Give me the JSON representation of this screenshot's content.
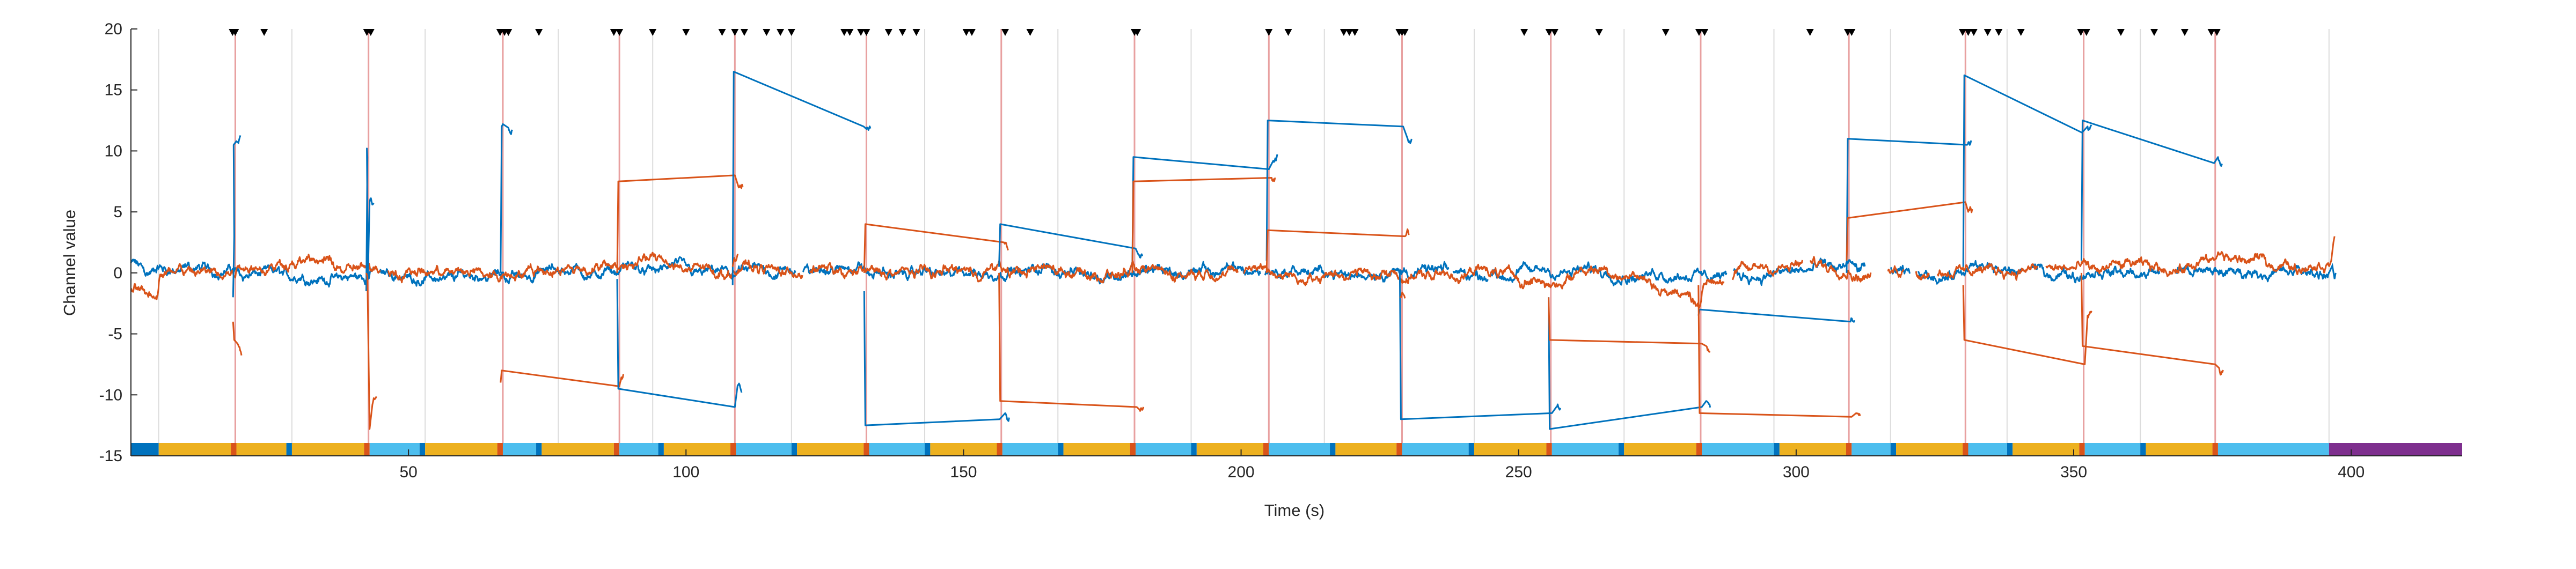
{
  "chart_data": {
    "type": "line",
    "title": "",
    "xlabel": "Time (s)",
    "ylabel": "Channel value",
    "xlim": [
      0,
      420
    ],
    "ylim": [
      -15,
      20
    ],
    "x_ticks": [
      50,
      100,
      150,
      200,
      250,
      300,
      350,
      400
    ],
    "y_ticks": [
      -15,
      -10,
      -5,
      0,
      5,
      10,
      15,
      20
    ],
    "grid": "vertical lines at event times",
    "colors": {
      "series_blue": "#0072BD",
      "series_orange": "#D95319",
      "event_line": "#E8A0A0",
      "grid_line": "#DCDCDC",
      "bar_yellow": "#EDB120",
      "bar_cyan": "#4DBEEE",
      "bar_darkblue": "#0072BD",
      "bar_purple": "#7E2F8E",
      "bar_orange": "#D95319",
      "marker": "#000000"
    },
    "event_lines": [
      18.8,
      42.8,
      67.0,
      88.0,
      108.8,
      132.5,
      156.8,
      180.8,
      205.0,
      229.0,
      255.8,
      282.8,
      309.5,
      330.5,
      351.8,
      375.5
    ],
    "grid_lines": [
      5,
      29,
      53,
      77,
      94,
      119,
      143,
      167,
      191,
      215,
      242,
      269,
      296,
      317,
      338,
      362,
      396
    ],
    "markers": [
      18.3,
      18.8,
      24,
      42.5,
      43.2,
      66.5,
      67.3,
      68.0,
      73.5,
      87.0,
      88.0,
      94,
      100,
      106.5,
      108.8,
      110.5,
      114.5,
      117,
      119,
      128.5,
      129.5,
      131.5,
      132.5,
      136.5,
      139,
      141.5,
      150.5,
      151.5,
      157.5,
      162,
      180.8,
      181.3,
      205.0,
      208.5,
      218.5,
      219.5,
      220.5,
      228.5,
      229.0,
      229.5,
      251,
      255.5,
      256.5,
      264.5,
      276.5,
      282.5,
      283.5,
      302.5,
      309.3,
      310.0,
      330.0,
      331.0,
      332.0,
      334.5,
      336.5,
      340.5,
      351.3,
      352.3,
      358.5,
      364.5,
      370,
      374.8,
      375.8
    ],
    "event_segments": [
      [
        -1.0,
        2,
        -2.0,
        3,
        18.5,
        10.5,
        19.0,
        10.8
      ],
      [
        0.3,
        1,
        -4.0,
        -5.5,
        19.2,
        -5.8
      ],
      [
        -0.5,
        0,
        -1.5,
        9.5,
        42.5,
        10.2,
        42.7,
        -0.3,
        43.0,
        5.8
      ],
      [
        0.0,
        0,
        0.0,
        -0.3,
        43.0,
        -12.8,
        43.5,
        -10.8
      ],
      [
        0.2,
        1,
        0.0,
        12.0,
        67.0,
        12.2,
        68.0,
        11.9
      ],
      [
        -1.0,
        2,
        -9.0,
        -8.0,
        88.0,
        -9.3
      ],
      [
        0.3,
        1,
        -0.5,
        -9.5,
        108.8,
        -11.0,
        109.3,
        -9.2
      ],
      [
        0.0,
        0,
        0.0,
        7.5,
        108.8,
        8.0,
        109.5,
        7.0
      ],
      [
        -0.5,
        0,
        -1.0,
        16.5,
        132.0,
        12.0,
        132.5,
        11.8
      ],
      [
        6.0,
        2,
        0.5,
        1.0
      ],
      [
        -0.5,
        0,
        -1.5,
        -12.5,
        156.5,
        -12.0,
        157.5,
        -11.5
      ],
      [
        -2.0,
        2,
        0.0,
        4.0,
        157.3,
        2.5
      ],
      [
        -1.0,
        2,
        0.5,
        4.0,
        181.0,
        2.0,
        181.5,
        1.5
      ],
      [
        0.0,
        0,
        0.0,
        -10.5,
        181.2,
        -11.0,
        181.7,
        -11.2
      ],
      [
        0.5,
        0,
        0.3,
        9.5,
        205.0,
        8.5,
        205.8,
        9.2
      ],
      [
        0.3,
        1,
        0.0,
        7.5,
        205.5,
        7.8
      ],
      [
        0.0,
        0,
        1.0,
        12.5,
        229.2,
        12.0,
        230.0,
        11.0
      ],
      [
        0.0,
        2,
        0.0,
        3.5,
        229.5,
        3.0
      ],
      [
        -1.0,
        2,
        0.0,
        -12.0,
        256.0,
        -11.5,
        256.8,
        -11.0
      ],
      [
        -1.0,
        1,
        -2.0,
        -2.0
      ],
      [
        -1.0,
        2,
        -2.0,
        -12.8,
        283.0,
        -11.0,
        283.8,
        -10.5
      ],
      [
        -0.5,
        0,
        -2.0,
        -5.5,
        283.0,
        -5.8,
        283.8,
        -6.0
      ],
      [
        -0.5,
        2,
        -3.5,
        -3.0,
        309.8,
        -4.0
      ],
      [
        0.0,
        0,
        -1.0,
        -11.5,
        310.0,
        -11.8,
        310.8,
        -11.5
      ],
      [
        0.0,
        1,
        0.0,
        11.0,
        330.8,
        10.5
      ],
      [
        0.0,
        0,
        1.0,
        4.5,
        330.5,
        5.8,
        331.0,
        5.0
      ],
      [
        0.0,
        0,
        0.5,
        16.2,
        351.5,
        11.5,
        352.5,
        12.0
      ],
      [
        0.3,
        1,
        -1.0,
        -5.5,
        352.0,
        -7.5,
        352.5,
        -3.5
      ],
      [
        0.0,
        0,
        1.0,
        12.5,
        375.3,
        9.0,
        376.0,
        9.5
      ],
      [
        0.0,
        0,
        0.0,
        -6.0,
        375.5,
        -7.5,
        376.2,
        -7.8
      ]
    ],
    "bar_segments": [
      [
        0,
        5,
        "bar_darkblue"
      ],
      [
        5,
        18,
        "bar_yellow"
      ],
      [
        18,
        19,
        "bar_orange"
      ],
      [
        19,
        28,
        "bar_yellow"
      ],
      [
        28,
        29,
        "bar_darkblue"
      ],
      [
        29,
        42,
        "bar_yellow"
      ],
      [
        42,
        43,
        "bar_orange"
      ],
      [
        43,
        52,
        "bar_cyan"
      ],
      [
        52,
        53,
        "bar_darkblue"
      ],
      [
        53,
        66,
        "bar_yellow"
      ],
      [
        66,
        67,
        "bar_orange"
      ],
      [
        67,
        73,
        "bar_cyan"
      ],
      [
        73,
        74,
        "bar_darkblue"
      ],
      [
        74,
        87,
        "bar_yellow"
      ],
      [
        87,
        88,
        "bar_orange"
      ],
      [
        88,
        95,
        "bar_cyan"
      ],
      [
        95,
        96,
        "bar_darkblue"
      ],
      [
        96,
        108,
        "bar_yellow"
      ],
      [
        108,
        109,
        "bar_orange"
      ],
      [
        109,
        119,
        "bar_cyan"
      ],
      [
        119,
        120,
        "bar_darkblue"
      ],
      [
        120,
        132,
        "bar_yellow"
      ],
      [
        132,
        133,
        "bar_orange"
      ],
      [
        133,
        143,
        "bar_cyan"
      ],
      [
        143,
        144,
        "bar_darkblue"
      ],
      [
        144,
        156,
        "bar_yellow"
      ],
      [
        156,
        157,
        "bar_orange"
      ],
      [
        157,
        167,
        "bar_cyan"
      ],
      [
        167,
        168,
        "bar_darkblue"
      ],
      [
        168,
        180,
        "bar_yellow"
      ],
      [
        180,
        181,
        "bar_orange"
      ],
      [
        181,
        191,
        "bar_cyan"
      ],
      [
        191,
        192,
        "bar_darkblue"
      ],
      [
        192,
        204,
        "bar_yellow"
      ],
      [
        204,
        205,
        "bar_orange"
      ],
      [
        205,
        216,
        "bar_cyan"
      ],
      [
        216,
        217,
        "bar_darkblue"
      ],
      [
        217,
        228,
        "bar_yellow"
      ],
      [
        228,
        229,
        "bar_orange"
      ],
      [
        229,
        241,
        "bar_cyan"
      ],
      [
        241,
        242,
        "bar_darkblue"
      ],
      [
        242,
        255,
        "bar_yellow"
      ],
      [
        255,
        256,
        "bar_orange"
      ],
      [
        256,
        268,
        "bar_cyan"
      ],
      [
        268,
        269,
        "bar_darkblue"
      ],
      [
        269,
        282,
        "bar_yellow"
      ],
      [
        282,
        283,
        "bar_orange"
      ],
      [
        283,
        296,
        "bar_cyan"
      ],
      [
        296,
        297,
        "bar_darkblue"
      ],
      [
        297,
        309,
        "bar_yellow"
      ],
      [
        309,
        310,
        "bar_orange"
      ],
      [
        310,
        317,
        "bar_cyan"
      ],
      [
        317,
        318,
        "bar_darkblue"
      ],
      [
        318,
        330,
        "bar_yellow"
      ],
      [
        330,
        331,
        "bar_orange"
      ],
      [
        331,
        338,
        "bar_cyan"
      ],
      [
        338,
        339,
        "bar_darkblue"
      ],
      [
        339,
        351,
        "bar_yellow"
      ],
      [
        351,
        352,
        "bar_orange"
      ],
      [
        352,
        362,
        "bar_cyan"
      ],
      [
        362,
        363,
        "bar_darkblue"
      ],
      [
        363,
        375,
        "bar_yellow"
      ],
      [
        375,
        376,
        "bar_orange"
      ],
      [
        376,
        396,
        "bar_cyan"
      ],
      [
        396,
        420,
        "bar_purple"
      ]
    ],
    "series": [
      {
        "color": "series_blue",
        "baseline": [
          [
            0,
            0.8
          ],
          [
            3,
            0.2
          ],
          [
            8,
            0.0
          ],
          [
            18.5,
            0.3
          ],
          [
            19.3,
            0.2
          ],
          [
            30,
            -0.2
          ],
          [
            42.3,
            -0.5
          ],
          [
            43.5,
            0.0
          ],
          [
            55,
            -0.3
          ],
          [
            66.8,
            0.1
          ],
          [
            67.5,
            -0.2
          ],
          [
            78,
            0.1
          ],
          [
            87.5,
            -0.3
          ],
          [
            88.5,
            0.2
          ],
          [
            100,
            0.3
          ],
          [
            108.5,
            -0.2
          ],
          [
            109.5,
            0.0
          ],
          [
            120,
            0.1
          ],
          [
            131.5,
            0.4
          ],
          [
            133,
            -0.3
          ],
          [
            145,
            0.0
          ],
          [
            156.3,
            -0.2
          ],
          [
            157.8,
            0.3
          ],
          [
            170,
            0.2
          ],
          [
            180.5,
            0.0
          ],
          [
            181.8,
            0.1
          ],
          [
            193,
            0.0
          ],
          [
            204.8,
            0.2
          ],
          [
            205.8,
            0.1
          ],
          [
            218,
            0.0
          ],
          [
            228.8,
            0.0
          ],
          [
            230,
            0.1
          ],
          [
            243,
            -0.1
          ],
          [
            255.5,
            0.0
          ],
          [
            257,
            0.1
          ],
          [
            270,
            0.0
          ],
          [
            282.5,
            0.2
          ],
          [
            284,
            0.0
          ],
          [
            297,
            0.1
          ],
          [
            309.3,
            0.3
          ],
          [
            311,
            0.0
          ],
          [
            318,
            -0.3
          ],
          [
            330.3,
            0.0
          ],
          [
            331,
            0.0
          ],
          [
            340,
            0.0
          ],
          [
            351.3,
            0.0
          ],
          [
            352.8,
            0.0
          ],
          [
            364,
            0.0
          ],
          [
            375,
            0.0
          ],
          [
            376.3,
            0.0
          ],
          [
            386,
            0.0
          ],
          [
            396,
            0.0
          ]
        ],
        "gaps": [
          [
            43.5,
            44.5
          ],
          [
            119.8,
            121.0
          ],
          [
            203.5,
            204.3
          ],
          [
            237.5,
            238.2
          ],
          [
            244.5,
            245.2
          ],
          [
            287.5,
            288.8
          ],
          [
            312.5,
            317.0
          ],
          [
            320.5,
            322.0
          ],
          [
            341.0,
            342.5
          ],
          [
            365.5,
            368.5
          ]
        ],
        "end_stub": [
          [
            396.0,
            0.0
          ],
          [
            396.6,
            0.6
          ],
          [
            397.0,
            -0.5
          ],
          [
            397.2,
            0.0
          ]
        ]
      },
      {
        "color": "series_orange",
        "baseline": [
          [
            0,
            -1.5
          ],
          [
            2,
            -1.5
          ],
          [
            4.8,
            -1.5
          ],
          [
            5.2,
            0.2
          ],
          [
            10,
            -0.2
          ],
          [
            18.5,
            -0.2
          ],
          [
            19.3,
            0.5
          ],
          [
            28,
            1.0
          ],
          [
            42.3,
            0.3
          ],
          [
            43.5,
            0.2
          ],
          [
            55,
            0.0
          ],
          [
            66.8,
            0.0
          ],
          [
            68.3,
            0.0
          ],
          [
            78,
            0.3
          ],
          [
            87.8,
            0.5
          ],
          [
            88.6,
            0.8
          ],
          [
            96,
            1.2
          ],
          [
            100,
            0.5
          ],
          [
            108.5,
            0.2
          ],
          [
            109.5,
            0.5
          ],
          [
            120,
            0.0
          ],
          [
            131.5,
            0.2
          ],
          [
            133,
            0.0
          ],
          [
            145,
            0.2
          ],
          [
            156.3,
            0.5
          ],
          [
            157.8,
            0.2
          ],
          [
            170,
            0.0
          ],
          [
            180.5,
            0.0
          ],
          [
            181.8,
            -0.3
          ],
          [
            193,
            0.0
          ],
          [
            204.8,
            0.3
          ],
          [
            205.8,
            0.0
          ],
          [
            218,
            -0.3
          ],
          [
            228.8,
            0.0
          ],
          [
            230,
            -0.2
          ],
          [
            243,
            0.0
          ],
          [
            255.5,
            -0.5
          ],
          [
            257,
            -0.5
          ],
          [
            265,
            0.6
          ],
          [
            270,
            0.0
          ],
          [
            282.5,
            -2.5
          ],
          [
            284,
            -0.5
          ],
          [
            297,
            0.5
          ],
          [
            309.3,
            0.5
          ],
          [
            311,
            0.0
          ],
          [
            318,
            0.3
          ],
          [
            330.3,
            0.5
          ],
          [
            331,
            0.5
          ],
          [
            340,
            0.5
          ],
          [
            351.3,
            0.3
          ],
          [
            352.8,
            0.0
          ],
          [
            364,
            0.5
          ],
          [
            375,
            0.5
          ],
          [
            376.3,
            1.0
          ],
          [
            386,
            0.8
          ],
          [
            396,
            0.5
          ]
        ],
        "gaps": [
          [
            45.0,
            46.2
          ],
          [
            121.0,
            122.2
          ],
          [
            199.5,
            200.5
          ],
          [
            287.0,
            288.5
          ],
          [
            301.2,
            302.5
          ],
          [
            313.5,
            316.5
          ],
          [
            319.5,
            321.5
          ],
          [
            324.0,
            325.5
          ],
          [
            343.5,
            345.0
          ]
        ],
        "end_stub": [
          [
            396.0,
            0.5
          ],
          [
            396.4,
            1.0
          ],
          [
            396.8,
            2.5
          ],
          [
            397.0,
            3.0
          ]
        ]
      }
    ]
  }
}
